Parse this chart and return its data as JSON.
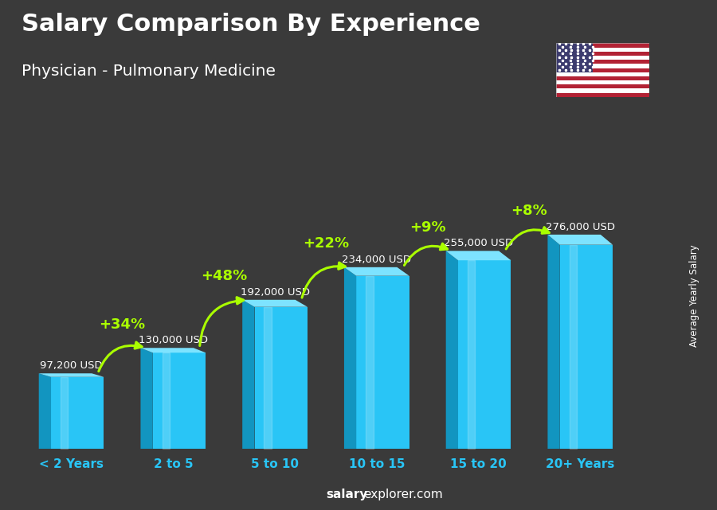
{
  "title": "Salary Comparison By Experience",
  "subtitle": "Physician - Pulmonary Medicine",
  "categories": [
    "< 2 Years",
    "2 to 5",
    "5 to 10",
    "10 to 15",
    "15 to 20",
    "20+ Years"
  ],
  "values": [
    97200,
    130000,
    192000,
    234000,
    255000,
    276000
  ],
  "labels": [
    "97,200 USD",
    "130,000 USD",
    "192,000 USD",
    "234,000 USD",
    "255,000 USD",
    "276,000 USD"
  ],
  "pct_changes": [
    "+34%",
    "+48%",
    "+22%",
    "+9%",
    "+8%"
  ],
  "bar_color_face": "#29c5f6",
  "bar_color_left": "#1295c0",
  "bar_color_top": "#7de3ff",
  "bg_color": "#3a3a3a",
  "title_color": "#ffffff",
  "subtitle_color": "#ffffff",
  "label_color": "#ffffff",
  "pct_color": "#aaff00",
  "cat_color": "#29c5f6",
  "ylabel_text": "Average Yearly Salary",
  "footer_bold": "salary",
  "footer_normal": "explorer.com"
}
